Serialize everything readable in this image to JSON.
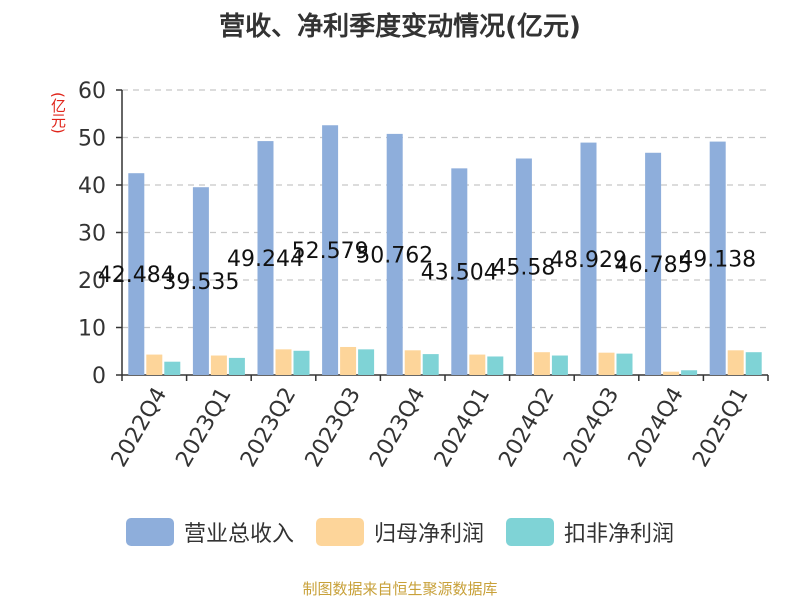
{
  "page": {
    "title": "营收、净利季度变动情况(亿元)",
    "source": "制图数据来自恒生聚源数据库"
  },
  "chart_data": {
    "type": "bar",
    "title": "营收、净利季度变动情况(亿元)",
    "ylabel": "(亿元)",
    "xlabel": "",
    "ylim": [
      0,
      60
    ],
    "yticks": [
      0,
      10,
      20,
      30,
      40,
      50,
      60
    ],
    "grid": true,
    "legend_position": "bottom",
    "categories": [
      "2022Q4",
      "2023Q1",
      "2023Q2",
      "2023Q3",
      "2023Q4",
      "2024Q1",
      "2024Q2",
      "2024Q3",
      "2024Q4",
      "2025Q1"
    ],
    "series": [
      {
        "name": "营业总收入",
        "color": "#8eaedb",
        "values": [
          42.484,
          39.535,
          49.244,
          52.579,
          50.762,
          43.504,
          45.58,
          48.929,
          46.785,
          49.138
        ],
        "labels": [
          "42.484",
          "39.535",
          "49.244",
          "52.579",
          "50.762",
          "43.504",
          "45.58",
          "48.929",
          "46.785",
          "49.138"
        ]
      },
      {
        "name": "归母净利润",
        "color": "#fdd59a",
        "values": [
          4.3,
          4.1,
          5.4,
          5.9,
          5.2,
          4.3,
          4.8,
          4.7,
          0.7,
          5.2
        ]
      },
      {
        "name": "扣非净利润",
        "color": "#7fd3d6",
        "values": [
          2.8,
          3.6,
          5.1,
          5.4,
          4.4,
          3.9,
          4.1,
          4.5,
          1.0,
          4.8
        ]
      }
    ]
  }
}
